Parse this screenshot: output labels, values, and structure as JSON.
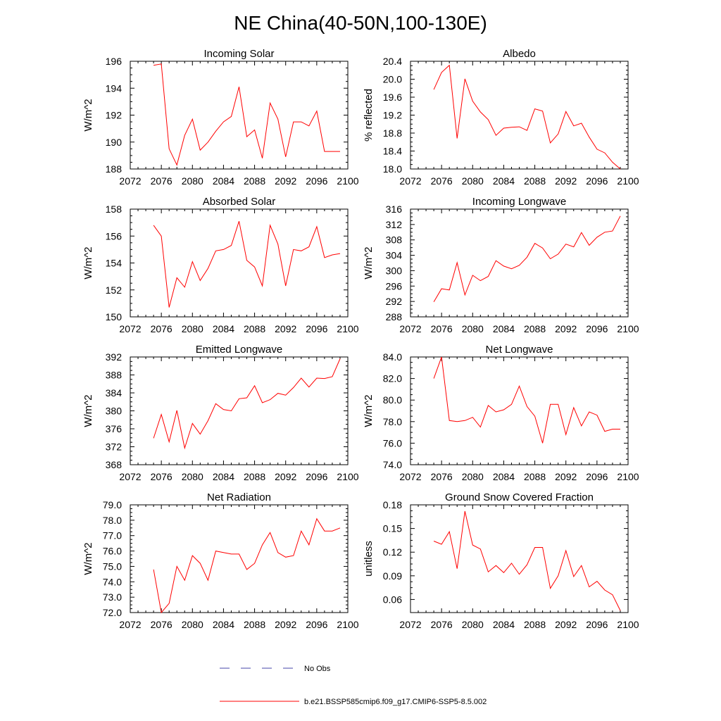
{
  "figure": {
    "title": "NE China(40-50N,100-130E)"
  },
  "legend": {
    "items": [
      {
        "label": "No Obs",
        "color": "#4444aa",
        "style": "dashed"
      },
      {
        "label": "b.e21.BSSP585cmip6.f09_g17.CMIP6-SSP5-8.5.002",
        "color": "#ff0000",
        "style": "solid"
      }
    ]
  },
  "chart_data": [
    {
      "type": "line",
      "title": "Incoming Solar",
      "xlabel": "",
      "ylabel": "W/m^2",
      "xlim": [
        2072,
        2100
      ],
      "ylim": [
        188,
        196
      ],
      "xticks": [
        2072,
        2076,
        2080,
        2084,
        2088,
        2092,
        2096,
        2100
      ],
      "yticks": [
        188,
        190,
        192,
        194,
        196
      ],
      "ytick_labels": [
        "188",
        "190",
        "192",
        "194",
        "196"
      ],
      "series": [
        {
          "color": "#ff0000",
          "x": [
            2075,
            2076,
            2077,
            2078,
            2079,
            2080,
            2081,
            2082,
            2083,
            2084,
            2085,
            2086,
            2087,
            2088,
            2089,
            2090,
            2091,
            2092,
            2093,
            2094,
            2095,
            2096,
            2097,
            2098,
            2099
          ],
          "y": [
            195.7,
            195.8,
            189.5,
            188.3,
            190.5,
            191.7,
            189.4,
            190.0,
            190.8,
            191.5,
            191.9,
            194.1,
            190.4,
            190.9,
            188.8,
            192.9,
            191.7,
            188.9,
            191.5,
            191.5,
            191.2,
            192.3,
            189.3,
            189.3,
            189.3
          ]
        }
      ]
    },
    {
      "type": "line",
      "title": "Albedo",
      "xlabel": "",
      "ylabel": "% reflected",
      "xlim": [
        2072,
        2100
      ],
      "ylim": [
        18.0,
        20.4
      ],
      "xticks": [
        2072,
        2076,
        2080,
        2084,
        2088,
        2092,
        2096,
        2100
      ],
      "yticks": [
        18.0,
        18.4,
        18.8,
        19.2,
        19.6,
        20.0,
        20.4
      ],
      "ytick_labels": [
        "18.0",
        "18.4",
        "18.8",
        "19.2",
        "19.6",
        "20.0",
        "20.4"
      ],
      "series": [
        {
          "color": "#ff0000",
          "x": [
            2075,
            2076,
            2077,
            2078,
            2079,
            2080,
            2081,
            2082,
            2083,
            2084,
            2085,
            2086,
            2087,
            2088,
            2089,
            2090,
            2091,
            2092,
            2093,
            2094,
            2095,
            2096,
            2097,
            2098,
            2099
          ],
          "y": [
            19.77,
            20.15,
            20.31,
            18.68,
            20.01,
            19.51,
            19.27,
            19.1,
            18.75,
            18.91,
            18.93,
            18.94,
            18.86,
            19.34,
            19.29,
            18.58,
            18.78,
            19.28,
            18.96,
            19.02,
            18.71,
            18.44,
            18.36,
            18.15,
            18.0
          ]
        }
      ]
    },
    {
      "type": "line",
      "title": "Absorbed Solar",
      "xlabel": "",
      "ylabel": "W/m^2",
      "xlim": [
        2072,
        2100
      ],
      "ylim": [
        150,
        158
      ],
      "xticks": [
        2072,
        2076,
        2080,
        2084,
        2088,
        2092,
        2096,
        2100
      ],
      "yticks": [
        150,
        152,
        154,
        156,
        158
      ],
      "ytick_labels": [
        "150",
        "152",
        "154",
        "156",
        "158"
      ],
      "series": [
        {
          "color": "#ff0000",
          "x": [
            2075,
            2076,
            2077,
            2078,
            2079,
            2080,
            2081,
            2082,
            2083,
            2084,
            2085,
            2086,
            2087,
            2088,
            2089,
            2090,
            2091,
            2092,
            2093,
            2094,
            2095,
            2096,
            2097,
            2098,
            2099
          ],
          "y": [
            156.8,
            156.0,
            150.7,
            152.9,
            152.2,
            154.1,
            152.7,
            153.6,
            154.9,
            155.0,
            155.3,
            157.1,
            154.2,
            153.7,
            152.3,
            156.8,
            155.4,
            152.3,
            155.0,
            154.9,
            155.2,
            156.7,
            154.4,
            154.6,
            154.7
          ]
        }
      ]
    },
    {
      "type": "line",
      "title": "Incoming Longwave",
      "xlabel": "",
      "ylabel": "W/m^2",
      "xlim": [
        2072,
        2100
      ],
      "ylim": [
        288,
        316
      ],
      "xticks": [
        2072,
        2076,
        2080,
        2084,
        2088,
        2092,
        2096,
        2100
      ],
      "yticks": [
        288,
        292,
        296,
        300,
        304,
        308,
        312,
        316
      ],
      "ytick_labels": [
        "288",
        "292",
        "296",
        "300",
        "304",
        "308",
        "312",
        "316"
      ],
      "series": [
        {
          "color": "#ff0000",
          "x": [
            2075,
            2076,
            2077,
            2078,
            2079,
            2080,
            2081,
            2082,
            2083,
            2084,
            2085,
            2086,
            2087,
            2088,
            2089,
            2090,
            2091,
            2092,
            2093,
            2094,
            2095,
            2096,
            2097,
            2098,
            2099
          ],
          "y": [
            291.9,
            295.3,
            295.0,
            302.1,
            293.7,
            298.8,
            297.4,
            298.5,
            302.6,
            301.2,
            300.5,
            301.4,
            303.5,
            307.1,
            305.9,
            303.1,
            304.3,
            306.9,
            306.2,
            309.9,
            306.6,
            308.7,
            310.0,
            310.3,
            314.2
          ]
        }
      ]
    },
    {
      "type": "line",
      "title": "Emitted Longwave",
      "xlabel": "",
      "ylabel": "W/m^2",
      "xlim": [
        2072,
        2100
      ],
      "ylim": [
        368,
        392
      ],
      "xticks": [
        2072,
        2076,
        2080,
        2084,
        2088,
        2092,
        2096,
        2100
      ],
      "yticks": [
        368,
        372,
        376,
        380,
        384,
        388,
        392
      ],
      "ytick_labels": [
        "368",
        "372",
        "376",
        "380",
        "384",
        "388",
        "392"
      ],
      "series": [
        {
          "color": "#ff0000",
          "x": [
            2075,
            2076,
            2077,
            2078,
            2079,
            2080,
            2081,
            2082,
            2083,
            2084,
            2085,
            2086,
            2087,
            2088,
            2089,
            2090,
            2091,
            2092,
            2093,
            2094,
            2095,
            2096,
            2097,
            2098,
            2099
          ],
          "y": [
            373.9,
            379.2,
            373.1,
            380.1,
            371.7,
            377.2,
            374.8,
            377.8,
            381.6,
            380.3,
            380.0,
            382.7,
            382.9,
            385.6,
            381.8,
            382.5,
            383.9,
            383.5,
            385.2,
            387.3,
            385.3,
            387.3,
            387.2,
            387.6,
            391.6
          ]
        }
      ]
    },
    {
      "type": "line",
      "title": "Net Longwave",
      "xlabel": "",
      "ylabel": "W/m^2",
      "xlim": [
        2072,
        2100
      ],
      "ylim": [
        74.0,
        84.0
      ],
      "xticks": [
        2072,
        2076,
        2080,
        2084,
        2088,
        2092,
        2096,
        2100
      ],
      "yticks": [
        74.0,
        76.0,
        78.0,
        80.0,
        82.0,
        84.0
      ],
      "ytick_labels": [
        "74.0",
        "76.0",
        "78.0",
        "80.0",
        "82.0",
        "84.0"
      ],
      "series": [
        {
          "color": "#ff0000",
          "x": [
            2075,
            2076,
            2077,
            2078,
            2079,
            2080,
            2081,
            2082,
            2083,
            2084,
            2085,
            2086,
            2087,
            2088,
            2089,
            2090,
            2091,
            2092,
            2093,
            2094,
            2095,
            2096,
            2097,
            2098,
            2099
          ],
          "y": [
            82.0,
            84.0,
            78.1,
            78.0,
            78.1,
            78.4,
            77.5,
            79.5,
            78.9,
            79.1,
            79.6,
            81.3,
            79.4,
            78.5,
            76.0,
            79.6,
            79.6,
            76.8,
            79.3,
            77.6,
            78.9,
            78.6,
            77.1,
            77.3,
            77.3
          ]
        }
      ]
    },
    {
      "type": "line",
      "title": "Net Radiation",
      "xlabel": "",
      "ylabel": "W/m^2",
      "xlim": [
        2072,
        2100
      ],
      "ylim": [
        72.0,
        79.0
      ],
      "xticks": [
        2072,
        2076,
        2080,
        2084,
        2088,
        2092,
        2096,
        2100
      ],
      "yticks": [
        72.0,
        73.0,
        74.0,
        75.0,
        76.0,
        77.0,
        78.0,
        79.0
      ],
      "ytick_labels": [
        "72.0",
        "73.0",
        "74.0",
        "75.0",
        "76.0",
        "77.0",
        "78.0",
        "79.0"
      ],
      "series": [
        {
          "color": "#ff0000",
          "x": [
            2075,
            2076,
            2077,
            2078,
            2079,
            2080,
            2081,
            2082,
            2083,
            2084,
            2085,
            2086,
            2087,
            2088,
            2089,
            2090,
            2091,
            2092,
            2093,
            2094,
            2095,
            2096,
            2097,
            2098,
            2099
          ],
          "y": [
            74.8,
            72.0,
            72.6,
            75.0,
            74.1,
            75.7,
            75.2,
            74.1,
            76.0,
            75.9,
            75.8,
            75.8,
            74.8,
            75.2,
            76.4,
            77.2,
            75.9,
            75.6,
            75.7,
            77.3,
            76.4,
            78.1,
            77.3,
            77.3,
            77.5
          ]
        }
      ]
    },
    {
      "type": "line",
      "title": "Ground Snow Covered Fraction",
      "xlabel": "",
      "ylabel": "unitless",
      "xlim": [
        2072,
        2100
      ],
      "ylim": [
        0.0434,
        0.18
      ],
      "xticks": [
        2072,
        2076,
        2080,
        2084,
        2088,
        2092,
        2096,
        2100
      ],
      "yticks": [
        0.06,
        0.09,
        0.12,
        0.15,
        0.18
      ],
      "ytick_labels": [
        "0.06",
        "0.09",
        "0.12",
        "0.15",
        "0.18"
      ],
      "series": [
        {
          "color": "#ff0000",
          "x": [
            2075,
            2076,
            2077,
            2078,
            2079,
            2080,
            2081,
            2082,
            2083,
            2084,
            2085,
            2086,
            2087,
            2088,
            2089,
            2090,
            2091,
            2092,
            2093,
            2094,
            2095,
            2096,
            2097,
            2098,
            2099
          ],
          "y": [
            0.134,
            0.13,
            0.146,
            0.099,
            0.172,
            0.129,
            0.124,
            0.095,
            0.103,
            0.094,
            0.106,
            0.092,
            0.104,
            0.126,
            0.126,
            0.074,
            0.09,
            0.122,
            0.089,
            0.103,
            0.076,
            0.083,
            0.072,
            0.066,
            0.046
          ]
        }
      ]
    }
  ]
}
